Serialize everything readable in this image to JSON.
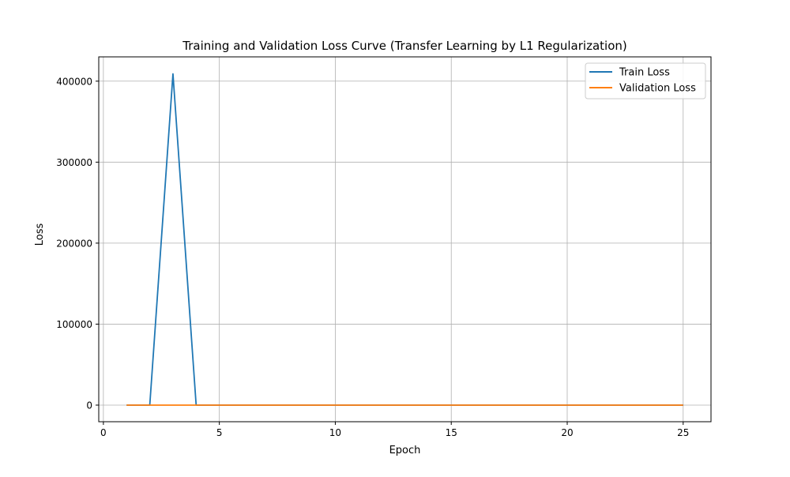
{
  "chart_data": {
    "type": "line",
    "title": "Training and Validation Loss Curve (Transfer Learning by L1 Regularization)",
    "xlabel": "Epoch",
    "ylabel": "Loss",
    "xlim": [
      -0.2,
      26.2
    ],
    "ylim": [
      -20500,
      430000
    ],
    "x_ticks": [
      0,
      5,
      10,
      15,
      20,
      25
    ],
    "x_tick_labels": [
      "0",
      "5",
      "10",
      "15",
      "20",
      "25"
    ],
    "y_ticks": [
      0,
      100000,
      200000,
      300000,
      400000
    ],
    "y_tick_labels": [
      "0",
      "100000",
      "200000",
      "300000",
      "400000"
    ],
    "grid": true,
    "legend_position": "top-right",
    "x": [
      1,
      2,
      3,
      4,
      5,
      6,
      7,
      8,
      9,
      10,
      11,
      12,
      13,
      14,
      15,
      16,
      17,
      18,
      19,
      20,
      21,
      22,
      23,
      24,
      25
    ],
    "series": [
      {
        "name": "Train Loss",
        "color": "#1f77b4",
        "values": [
          0,
          0,
          409000,
          0,
          0,
          0,
          0,
          0,
          0,
          0,
          0,
          0,
          0,
          0,
          0,
          0,
          0,
          0,
          0,
          0,
          0,
          0,
          0,
          0,
          0
        ]
      },
      {
        "name": "Validation Loss",
        "color": "#ff7f0e",
        "values": [
          0,
          0,
          0,
          0,
          0,
          0,
          0,
          0,
          0,
          0,
          0,
          0,
          0,
          0,
          0,
          0,
          0,
          0,
          0,
          0,
          0,
          0,
          0,
          0,
          0
        ]
      }
    ]
  }
}
